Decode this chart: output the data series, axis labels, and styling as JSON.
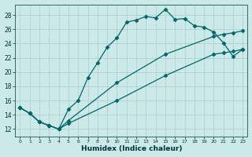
{
  "title": "",
  "xlabel": "Humidex (Indice chaleur)",
  "bg_color": "#cce9e9",
  "grid_color": "#aacccc",
  "line_color": "#006666",
  "xlim": [
    -0.5,
    23.5
  ],
  "ylim": [
    11.0,
    29.5
  ],
  "xticks": [
    0,
    1,
    2,
    3,
    4,
    5,
    6,
    7,
    8,
    9,
    10,
    11,
    12,
    13,
    14,
    15,
    16,
    17,
    18,
    19,
    20,
    21,
    22,
    23
  ],
  "yticks": [
    12,
    14,
    16,
    18,
    20,
    22,
    24,
    26,
    28
  ],
  "line1_x": [
    0,
    1,
    2,
    3,
    4,
    5,
    6,
    7,
    8,
    9,
    10,
    11,
    12,
    13,
    14,
    15,
    16,
    17,
    18,
    19,
    20,
    21,
    22,
    23
  ],
  "line1_y": [
    15.0,
    14.2,
    13.0,
    12.5,
    12.0,
    14.8,
    16.0,
    19.2,
    21.3,
    23.5,
    24.8,
    27.0,
    27.3,
    27.8,
    27.6,
    28.8,
    27.4,
    27.5,
    26.5,
    26.3,
    25.6,
    24.1,
    22.2,
    23.2
  ],
  "line2_x": [
    0,
    1,
    2,
    3,
    4,
    5,
    10,
    15,
    20,
    21,
    22,
    23
  ],
  "line2_y": [
    15.0,
    14.2,
    13.0,
    12.5,
    12.0,
    13.2,
    18.5,
    22.5,
    25.0,
    25.3,
    25.5,
    25.8
  ],
  "line3_x": [
    0,
    1,
    2,
    3,
    4,
    5,
    10,
    15,
    20,
    21,
    22,
    23
  ],
  "line3_y": [
    15.0,
    14.2,
    13.0,
    12.5,
    12.0,
    12.8,
    16.0,
    19.5,
    22.5,
    22.7,
    22.9,
    23.2
  ]
}
